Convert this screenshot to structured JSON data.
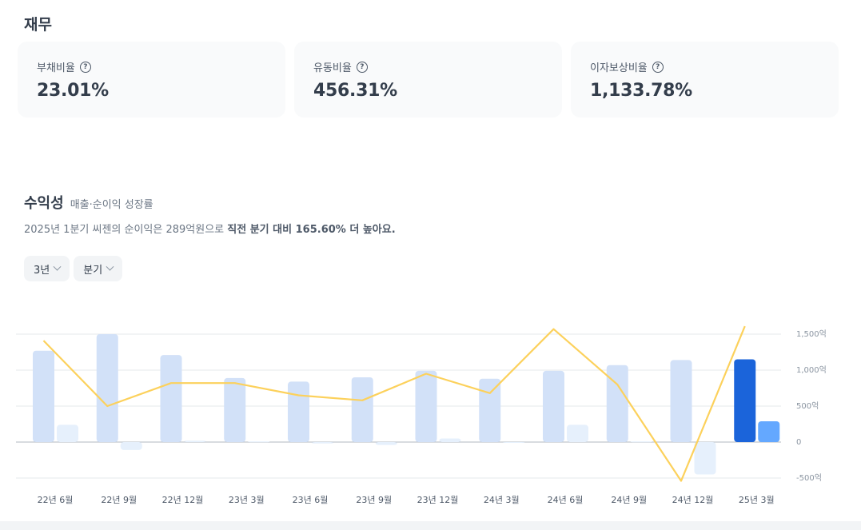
{
  "finance": {
    "title": "재무",
    "cards": [
      {
        "label": "부채비율",
        "value": "23.01%"
      },
      {
        "label": "유동비율",
        "value": "456.31%"
      },
      {
        "label": "이자보상비율",
        "value": "1,133.78%"
      }
    ],
    "help_glyph": "?"
  },
  "profitability": {
    "title": "수익성",
    "subtitle": "매출·순이익 성장률",
    "summary_prefix": "2025년 1분기 씨젠의 순이익은 289억원으로 ",
    "summary_bold": "직전 분기 대비 165.60% 더 높아요.",
    "filters": [
      {
        "label": "3년"
      },
      {
        "label": "분기"
      }
    ]
  },
  "chart_data": {
    "type": "bar",
    "categories": [
      "22년 6월",
      "22년 9월",
      "22년 12월",
      "23년 3월",
      "23년 6월",
      "23년 9월",
      "23년 12월",
      "24년 3월",
      "24년 6월",
      "24년 9월",
      "24년 12월",
      "25년 3월"
    ],
    "series": [
      {
        "name": "매출",
        "type": "bar",
        "values": [
          1270,
          1500,
          1210,
          890,
          840,
          900,
          990,
          880,
          990,
          1070,
          1140,
          1150
        ]
      },
      {
        "name": "순이익",
        "type": "bar",
        "values": [
          240,
          -110,
          20,
          10,
          -20,
          -40,
          50,
          -10,
          240,
          10,
          -450,
          289
        ]
      },
      {
        "name": "성장률",
        "type": "line",
        "values": [
          1410,
          500,
          820,
          820,
          650,
          580,
          950,
          680,
          1570,
          800,
          -540,
          1610
        ]
      }
    ],
    "yticks": [
      -500,
      0,
      500,
      1000,
      1500
    ],
    "ytick_labels": [
      "-500억",
      "0",
      "500억",
      "1,000억",
      "1,500억"
    ],
    "ylim": [
      -500,
      1500
    ],
    "colors": {
      "revenue": "#d2e1f8",
      "revenue_active": "#1b64da",
      "profit": "#e6f0fc",
      "profit_active": "#64a8ff",
      "line": "#fcd15c",
      "grid": "#e5e8eb",
      "axis": "#8b95a1",
      "label": "#4e5968"
    }
  }
}
